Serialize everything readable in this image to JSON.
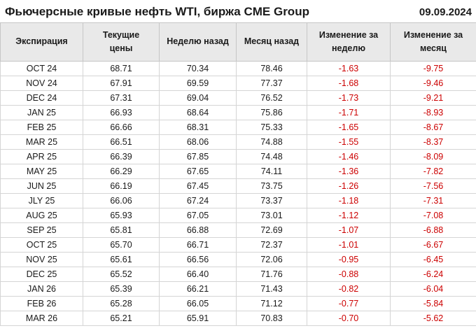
{
  "header": {
    "title": "Фьючерсные кривые нефть WTI, биржа CME Group",
    "date": "09.09.2024"
  },
  "chart_data": {
    "type": "table",
    "title": "Фьючерсные кривые нефть WTI, биржа CME Group",
    "date": "09.09.2024",
    "columns": [
      "Экспирация",
      "Текущие цены",
      "Неделю назад",
      "Месяц назад",
      "Изменение за неделю",
      "Изменение за месяц"
    ],
    "rows": [
      [
        "OCT 24",
        "68.71",
        "70.34",
        "78.46",
        "-1.63",
        "-9.75"
      ],
      [
        "NOV 24",
        "67.91",
        "69.59",
        "77.37",
        "-1.68",
        "-9.46"
      ],
      [
        "DEC 24",
        "67.31",
        "69.04",
        "76.52",
        "-1.73",
        "-9.21"
      ],
      [
        "JAN 25",
        "66.93",
        "68.64",
        "75.86",
        "-1.71",
        "-8.93"
      ],
      [
        "FEB 25",
        "66.66",
        "68.31",
        "75.33",
        "-1.65",
        "-8.67"
      ],
      [
        "MAR 25",
        "66.51",
        "68.06",
        "74.88",
        "-1.55",
        "-8.37"
      ],
      [
        "APR 25",
        "66.39",
        "67.85",
        "74.48",
        "-1.46",
        "-8.09"
      ],
      [
        "MAY 25",
        "66.29",
        "67.65",
        "74.11",
        "-1.36",
        "-7.82"
      ],
      [
        "JUN 25",
        "66.19",
        "67.45",
        "73.75",
        "-1.26",
        "-7.56"
      ],
      [
        "JLY 25",
        "66.06",
        "67.24",
        "73.37",
        "-1.18",
        "-7.31"
      ],
      [
        "AUG 25",
        "65.93",
        "67.05",
        "73.01",
        "-1.12",
        "-7.08"
      ],
      [
        "SEP 25",
        "65.81",
        "66.88",
        "72.69",
        "-1.07",
        "-6.88"
      ],
      [
        "OCT 25",
        "65.70",
        "66.71",
        "72.37",
        "-1.01",
        "-6.67"
      ],
      [
        "NOV 25",
        "65.61",
        "66.56",
        "72.06",
        "-0.95",
        "-6.45"
      ],
      [
        "DEC 25",
        "65.52",
        "66.40",
        "71.76",
        "-0.88",
        "-6.24"
      ],
      [
        "JAN 26",
        "65.39",
        "66.21",
        "71.43",
        "-0.82",
        "-6.04"
      ],
      [
        "FEB 26",
        "65.28",
        "66.05",
        "71.12",
        "-0.77",
        "-5.84"
      ],
      [
        "MAR 26",
        "65.21",
        "65.91",
        "70.83",
        "-0.70",
        "-5.62"
      ]
    ],
    "colors": {
      "negative_value": "#cc0000",
      "header_background": "#e9e9e9"
    },
    "layout": {
      "grid": "on",
      "value_alignment": "center",
      "negative_columns": [
        "Изменение за неделю",
        "Изменение за месяц"
      ]
    }
  }
}
